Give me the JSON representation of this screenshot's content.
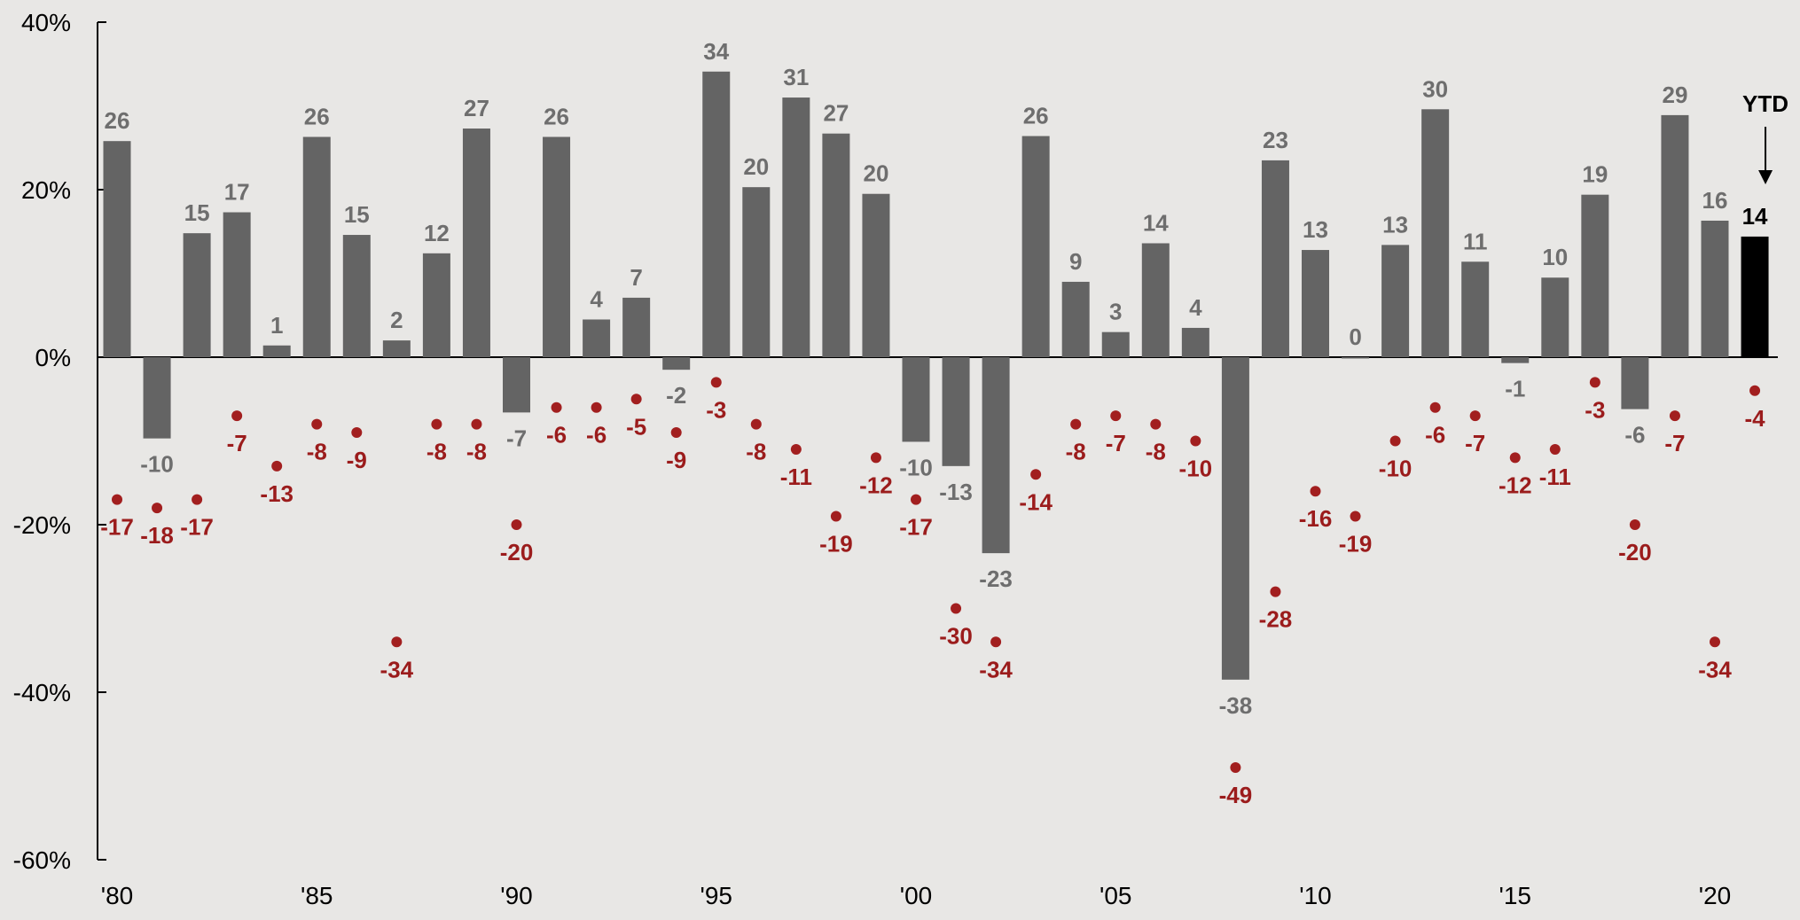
{
  "chart_data": {
    "type": "bar",
    "title": "",
    "xlabel": "",
    "ylabel": "",
    "ylim": [
      -60,
      40
    ],
    "y_ticks": [
      "40%",
      "20%",
      "0%",
      "-20%",
      "-40%",
      "-60%"
    ],
    "y_tick_values": [
      40,
      20,
      0,
      -20,
      -40,
      -60
    ],
    "x_tick_labels": [
      "'80",
      "'85",
      "'90",
      "'95",
      "'00",
      "'05",
      "'10",
      "'15",
      "'20"
    ],
    "x_tick_years": [
      1980,
      1985,
      1990,
      1995,
      2000,
      2005,
      2010,
      2015,
      2020
    ],
    "years": [
      1980,
      1981,
      1982,
      1983,
      1984,
      1985,
      1986,
      1987,
      1988,
      1989,
      1990,
      1991,
      1992,
      1993,
      1994,
      1995,
      1996,
      1997,
      1998,
      1999,
      2000,
      2001,
      2002,
      2003,
      2004,
      2005,
      2006,
      2007,
      2008,
      2009,
      2010,
      2011,
      2012,
      2013,
      2014,
      2015,
      2016,
      2017,
      2018,
      2019,
      2020,
      2021
    ],
    "series": [
      {
        "type": "bar",
        "values": [
          25.8,
          -9.7,
          14.8,
          17.3,
          1.4,
          26.3,
          14.6,
          2.0,
          12.4,
          27.3,
          -6.6,
          26.3,
          4.5,
          7.1,
          -1.5,
          34.1,
          20.3,
          31.0,
          26.7,
          19.5,
          -10.1,
          -13.0,
          -23.4,
          26.4,
          9.0,
          3.0,
          13.6,
          3.5,
          -38.5,
          23.5,
          12.8,
          -0.0,
          13.4,
          29.6,
          11.4,
          -0.7,
          9.5,
          19.4,
          -6.2,
          28.9,
          16.3,
          14.4
        ],
        "labels": [
          "26",
          "-10",
          "15",
          "17",
          "1",
          "26",
          "15",
          "2",
          "12",
          "27",
          "-7",
          "26",
          "4",
          "7",
          "-2",
          "34",
          "20",
          "31",
          "27",
          "20",
          "-10",
          "-13",
          "-23",
          "26",
          "9",
          "3",
          "14",
          "4",
          "-38",
          "23",
          "13",
          "0",
          "13",
          "30",
          "11",
          "-1",
          "10",
          "19",
          "-6",
          "29",
          "16",
          "14"
        ],
        "highlight_last_color": "#000000",
        "color": "#646464"
      },
      {
        "type": "scatter",
        "values": [
          -17,
          -18,
          -17,
          -7,
          -13,
          -8,
          -9,
          -34,
          -8,
          -8,
          -20,
          -6,
          -6,
          -5,
          -9,
          -3,
          -8,
          -11,
          -19,
          -12,
          -17,
          -30,
          -34,
          -14,
          -8,
          -7,
          -8,
          -10,
          -49,
          -28,
          -16,
          -19,
          -10,
          -6,
          -7,
          -12,
          -11,
          -3,
          -20,
          -7,
          -34,
          -4
        ],
        "labels": [
          "-17",
          "-18",
          "-17",
          "-7",
          "-13",
          "-8",
          "-9",
          "-34",
          "-8",
          "-8",
          "-20",
          "-6",
          "-6",
          "-5",
          "-9",
          "-3",
          "-8",
          "-11",
          "-19",
          "-12",
          "-17",
          "-30",
          "-34",
          "-14",
          "-8",
          "-7",
          "-8",
          "-10",
          "-49",
          "-28",
          "-16",
          "-19",
          "-10",
          "-6",
          "-7",
          "-12",
          "-11",
          "-3",
          "-20",
          "-7",
          "-34",
          "-4"
        ],
        "color": "#a21f1f"
      }
    ],
    "annotation": {
      "text": "YTD",
      "arrow": true
    },
    "grid": false
  }
}
